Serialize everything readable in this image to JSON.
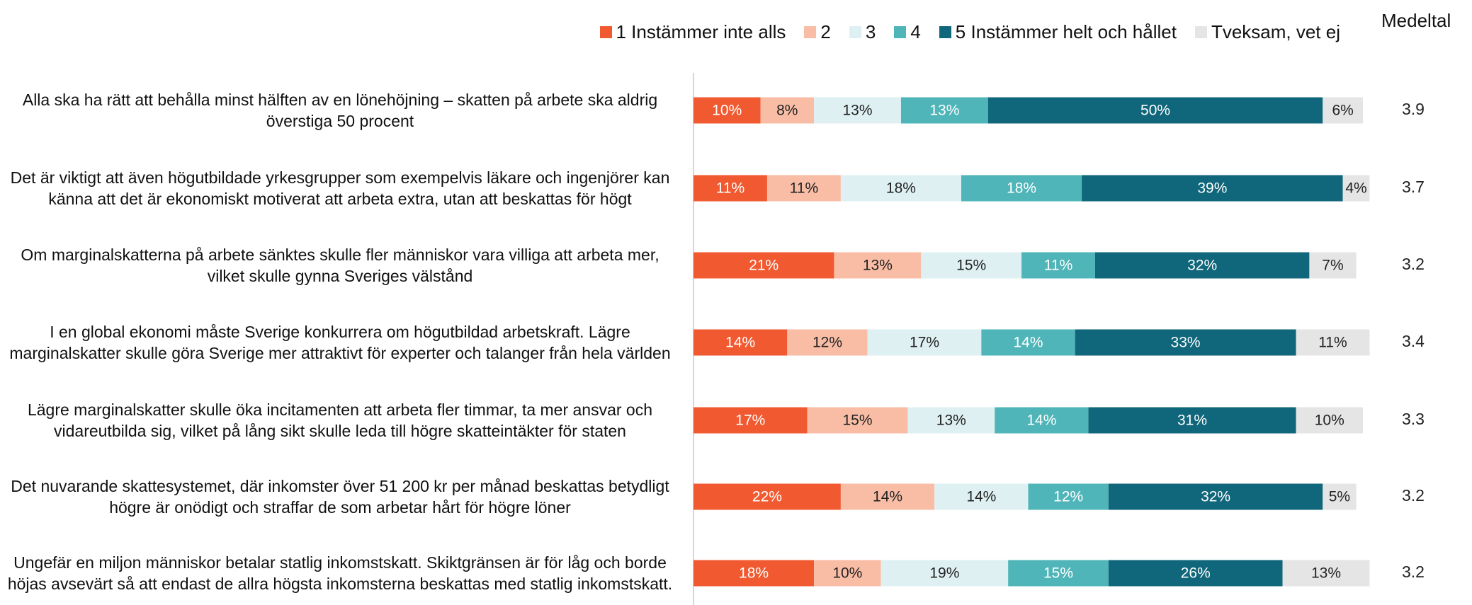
{
  "chart_data": {
    "type": "stacked_bar",
    "orientation": "horizontal",
    "categories": [
      "Alla ska ha rätt att behålla minst hälften av en lönehöjning – skatten på arbete ska aldrig överstiga 50 procent",
      "Det är viktigt att även högutbildade yrkesgrupper som exempelvis läkare och ingenjörer kan känna att det är ekonomiskt motiverat att arbeta extra, utan att beskattas för högt",
      "Om marginalskatterna på arbete sänktes skulle fler människor vara villiga att arbeta mer, vilket skulle gynna Sveriges välstånd",
      "I en global ekonomi måste Sverige konkurrera om högutbildad arbetskraft. Lägre marginalskatter skulle göra Sverige mer attraktivt för experter och talanger från hela världen",
      "Lägre marginalskatter skulle öka incitamenten att arbeta fler timmar, ta mer ansvar och vidareutbilda sig, vilket på lång sikt skulle leda till högre skatteintäkter för staten",
      "Det nuvarande skattesystemet, där inkomster över 51 200 kr per månad beskattas betydligt högre är onödigt och straffar de som arbetar hårt för högre löner",
      "Ungefär en miljon människor betalar statlig inkomstskatt. Skiktgränsen är för låg och borde höjas avsevärt så att endast de allra högsta inkomsterna beskattas med statlig inkomstskatt."
    ],
    "series": [
      {
        "name": "1 Instämmer inte alls",
        "color": "#f15a31",
        "values": [
          10,
          11,
          21,
          14,
          17,
          22,
          18
        ],
        "value_labels": [
          "10%",
          "11%",
          "21%",
          "14%",
          "17%",
          "22%",
          "18%"
        ]
      },
      {
        "name": "2",
        "color": "#f9bda6",
        "values": [
          8,
          11,
          13,
          12,
          15,
          14,
          10
        ],
        "value_labels": [
          "8%",
          "11%",
          "13%",
          "12%",
          "15%",
          "14%",
          "10%"
        ]
      },
      {
        "name": "3",
        "color": "#dff0f2",
        "values": [
          13,
          18,
          15,
          17,
          13,
          14,
          19
        ],
        "value_labels": [
          "13%",
          "18%",
          "15%",
          "17%",
          "13%",
          "14%",
          "19%"
        ]
      },
      {
        "name": "4",
        "color": "#4fb5b8",
        "values": [
          13,
          18,
          11,
          14,
          14,
          12,
          15
        ],
        "value_labels": [
          "13%",
          "18%",
          "11%",
          "14%",
          "14%",
          "12%",
          "15%"
        ]
      },
      {
        "name": "5 Instämmer helt och hållet",
        "color": "#10667a",
        "values": [
          50,
          39,
          32,
          33,
          31,
          32,
          26
        ],
        "value_labels": [
          "50%",
          "39%",
          "32%",
          "33%",
          "31%",
          "32%",
          "26%"
        ]
      },
      {
        "name": "Tveksam, vet ej",
        "color": "#e5e5e5",
        "values": [
          6,
          4,
          7,
          11,
          10,
          5,
          13
        ],
        "value_labels": [
          "6%",
          "4%",
          "7%",
          "11%",
          "10%",
          "5%",
          "13%"
        ]
      }
    ],
    "xlim": [
      0,
      100
    ],
    "mean_title": "Medeltal",
    "means": [
      3.9,
      3.7,
      3.2,
      3.4,
      3.3,
      3.2,
      3.2
    ]
  }
}
